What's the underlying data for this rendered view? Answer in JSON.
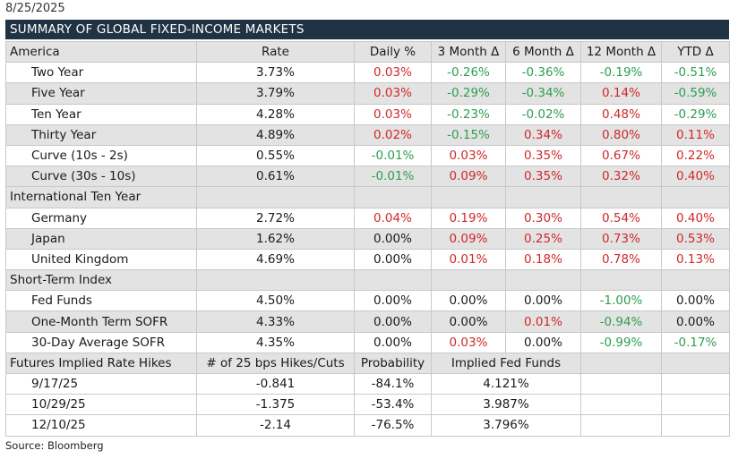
{
  "date": "8/25/2025",
  "title": "SUMMARY OF GLOBAL FIXED-INCOME MARKETS",
  "header": [
    "America",
    "Rate",
    "Daily %",
    "3 Month Δ",
    "6 Month Δ",
    "12 Month Δ",
    "YTD Δ"
  ],
  "america": [
    {
      "name": "Two Year",
      "rate": "3.73%",
      "vals": [
        "0.03%",
        "-0.26%",
        "-0.36%",
        "-0.19%",
        "-0.51%"
      ]
    },
    {
      "name": "Five Year",
      "rate": "3.79%",
      "vals": [
        "0.03%",
        "-0.29%",
        "-0.34%",
        "0.14%",
        "-0.59%"
      ]
    },
    {
      "name": "Ten Year",
      "rate": "4.28%",
      "vals": [
        "0.03%",
        "-0.23%",
        "-0.02%",
        "0.48%",
        "-0.29%"
      ]
    },
    {
      "name": "Thirty Year",
      "rate": "4.89%",
      "vals": [
        "0.02%",
        "-0.15%",
        "0.34%",
        "0.80%",
        "0.11%"
      ]
    },
    {
      "name": "Curve (10s - 2s)",
      "rate": "0.55%",
      "vals": [
        "-0.01%",
        "0.03%",
        "0.35%",
        "0.67%",
        "0.22%"
      ]
    },
    {
      "name": "Curve (30s - 10s)",
      "rate": "0.61%",
      "vals": [
        "-0.01%",
        "0.09%",
        "0.35%",
        "0.32%",
        "0.40%"
      ]
    }
  ],
  "intl_label": "International Ten Year",
  "international": [
    {
      "name": "Germany",
      "rate": "2.72%",
      "vals": [
        "0.04%",
        "0.19%",
        "0.30%",
        "0.54%",
        "0.40%"
      ]
    },
    {
      "name": "Japan",
      "rate": "1.62%",
      "vals": [
        "0.00%",
        "0.09%",
        "0.25%",
        "0.73%",
        "0.53%"
      ]
    },
    {
      "name": "United Kingdom",
      "rate": "4.69%",
      "vals": [
        "0.00%",
        "0.01%",
        "0.18%",
        "0.78%",
        "0.13%"
      ]
    }
  ],
  "short_label": "Short-Term Index",
  "short_term": [
    {
      "name": "Fed Funds",
      "rate": "4.50%",
      "vals": [
        "0.00%",
        "0.00%",
        "0.00%",
        "-1.00%",
        "0.00%"
      ]
    },
    {
      "name": "One-Month Term SOFR",
      "rate": "4.33%",
      "vals": [
        "0.00%",
        "0.00%",
        "0.01%",
        "-0.94%",
        "0.00%"
      ]
    },
    {
      "name": "30-Day Average SOFR",
      "rate": "4.35%",
      "vals": [
        "0.00%",
        "0.03%",
        "0.00%",
        "-0.99%",
        "-0.17%"
      ]
    }
  ],
  "futures_header": [
    "Futures Implied Rate Hikes",
    "# of 25 bps Hikes/Cuts",
    "Probability",
    "Implied Fed Funds"
  ],
  "futures": [
    {
      "date": "9/17/25",
      "hikes": "-0.841",
      "prob": "-84.1%",
      "implied": "4.121%"
    },
    {
      "date": "10/29/25",
      "hikes": "-1.375",
      "prob": "-53.4%",
      "implied": "3.987%"
    },
    {
      "date": "12/10/25",
      "hikes": "-2.14",
      "prob": "-76.5%",
      "implied": "3.796%"
    }
  ],
  "source": "Source: Bloomberg",
  "colors": {
    "title_bg": "#1f3344",
    "negative": "#2e9e4f",
    "positive": "#d02828",
    "shade": "#e3e3e3"
  }
}
